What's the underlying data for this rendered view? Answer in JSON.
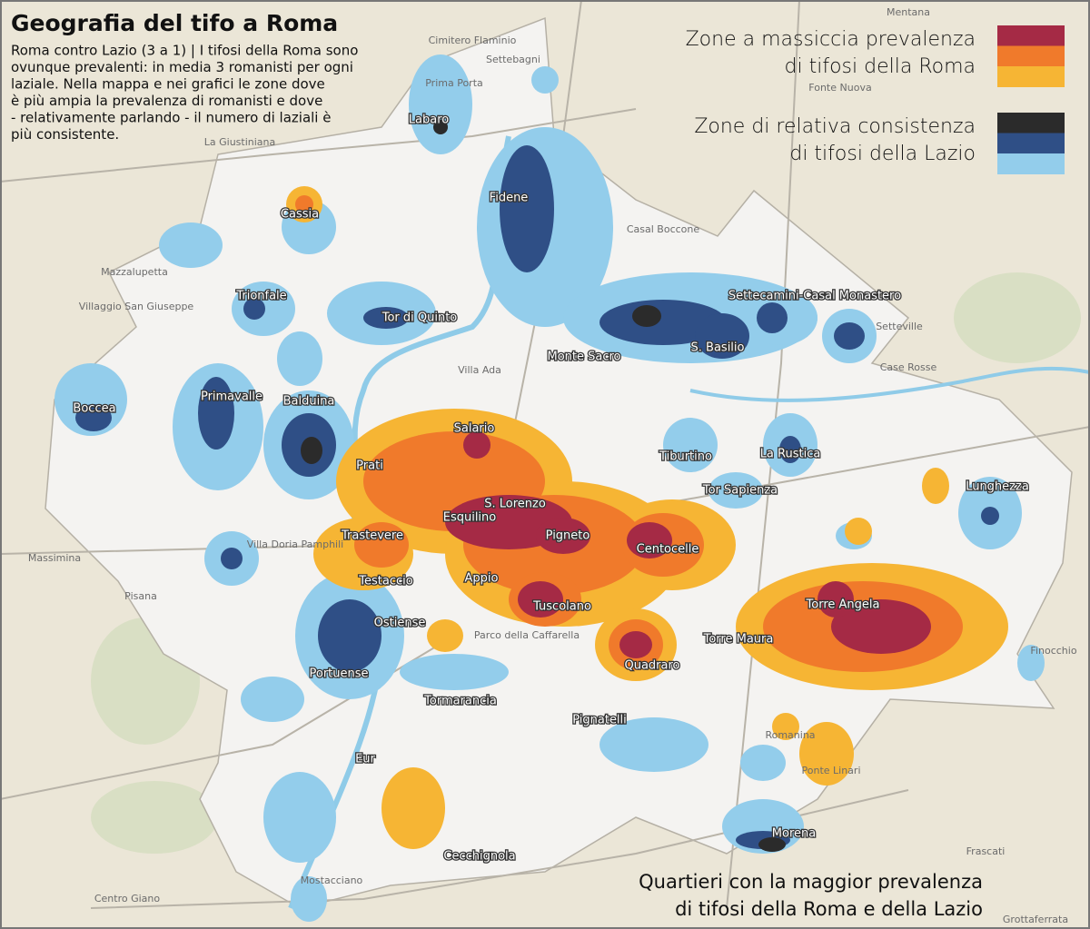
{
  "title": "Geografia del tifo a Roma",
  "description": [
    "Roma contro Lazio (3 a 1) | I tifosi della Roma sono",
    "ovunque prevalenti: in media 3 romanisti per ogni",
    "laziale. Nella mappa e nei grafici le zone dove",
    "è più ampia la prevalenza di romanisti e dove",
    "- relativamente parlando - il numero di laziali è",
    "più consistente."
  ],
  "legend": [
    {
      "label": [
        "Zone a massiccia prevalenza",
        "di tifosi della Roma"
      ],
      "colors": [
        "#a52a45",
        "#f07a2b",
        "#f6b534"
      ]
    },
    {
      "label": [
        "Zone di relativa consistenza",
        "di tifosi della Lazio"
      ],
      "colors": [
        "#2b2b2b",
        "#2f4f86",
        "#93cdeb"
      ]
    }
  ],
  "caption": [
    "Quartieri con la maggior prevalenza",
    "di tifosi della Roma e della Lazio"
  ],
  "neighborhoods": [
    "Labaro",
    "Cassia",
    "Fidene",
    "Trionfale",
    "Tor di Quinto",
    "Settecamini-Casal Monastero",
    "S. Basilio",
    "Monte Sacro",
    "Boccea",
    "Primavalle",
    "Balduina",
    "Salario",
    "Prati",
    "Tiburtino",
    "La Rustica",
    "Lunghezza",
    "Tor Sapienza",
    "S. Lorenzo",
    "Esquilino",
    "Pigneto",
    "Trastevere",
    "Centocelle",
    "Testaccio",
    "Appio",
    "Torre Angela",
    "Tuscolano",
    "Ostiense",
    "Torre Maura",
    "Quadraro",
    "Portuense",
    "Tormarancia",
    "Pignatelli",
    "Eur",
    "Morena",
    "Cecchignola"
  ],
  "basemap_labels": [
    "Mentana",
    "Cimitero Flaminio",
    "Settebagni",
    "Prima Porta",
    "Fonte Nuova",
    "La Giustiniana",
    "Casal Boccone",
    "Mazzalupetta",
    "Villaggio San Giuseppe",
    "Setteville",
    "Case Rosse",
    "Massimina",
    "Pisana",
    "Finocchio",
    "Frascati",
    "Centro Giano",
    "Mostacciano",
    "Grottaferrata",
    "Ponte Linari",
    "Romanina",
    "Villa Ada",
    "Villa Doria Pamphili",
    "Parco della Caffarella"
  ]
}
